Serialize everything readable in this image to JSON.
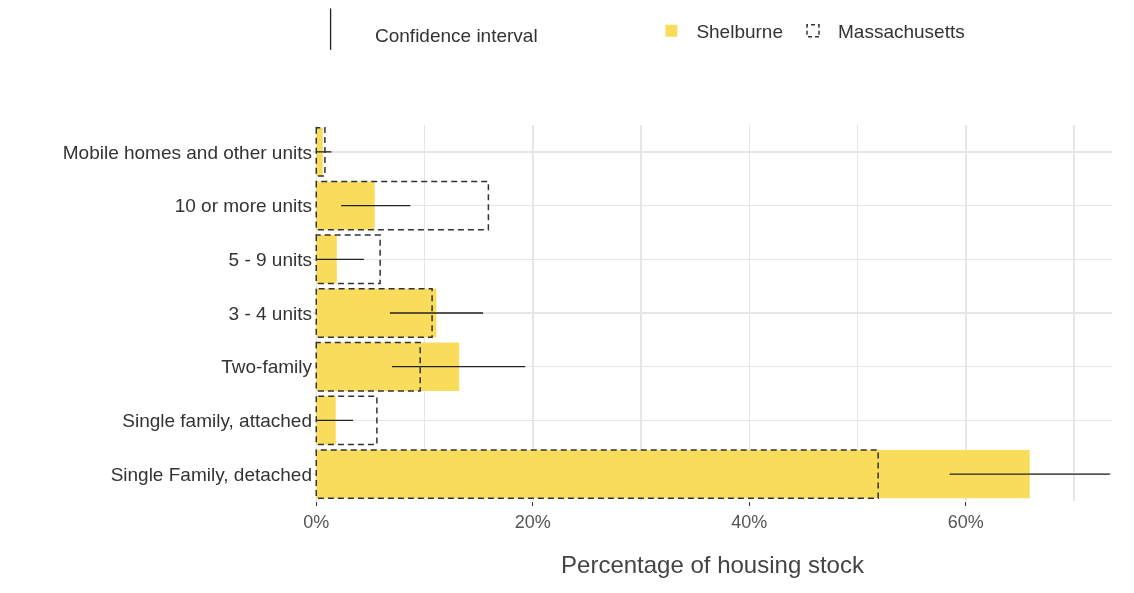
{
  "chart_data": {
    "type": "bar",
    "orientation": "horizontal",
    "xlabel": "Percentage of housing stock",
    "categories": [
      "Mobile homes and other units",
      "10 or more units",
      "5 - 9 units",
      "3 - 4 units",
      "Two-family",
      "Single family, attached",
      "Single Family, detached"
    ],
    "series": [
      {
        "name": "Shelburne",
        "color": "#f9dc5c",
        "values": [
          0.6,
          5.4,
          1.9,
          11.1,
          13.2,
          1.8,
          65.9
        ],
        "errors": [
          [
            0,
            1.4
          ],
          [
            2.3,
            8.7
          ],
          [
            0,
            4.4
          ],
          [
            6.8,
            15.4
          ],
          [
            7.0,
            19.3
          ],
          [
            0,
            3.4
          ],
          [
            58.5,
            73.3
          ]
        ]
      },
      {
        "name": "Massachusetts",
        "color": "#333333",
        "line_style": "dashed",
        "values": [
          0.8,
          15.9,
          5.9,
          10.7,
          9.6,
          5.6,
          51.9
        ]
      }
    ],
    "annotations": [
      "Confidence interval"
    ],
    "xlim": [
      -0.3,
      73.5
    ],
    "xticks": [
      {
        "value": 0,
        "label": "0%"
      },
      {
        "value": 10,
        "label": null
      },
      {
        "value": 20,
        "label": "20%"
      },
      {
        "value": 30,
        "label": null
      },
      {
        "value": 40,
        "label": "40%"
      },
      {
        "value": 50,
        "label": null
      },
      {
        "value": 60,
        "label": "60%"
      },
      {
        "value": 70,
        "label": null
      }
    ],
    "grid": true,
    "legend": "top"
  }
}
